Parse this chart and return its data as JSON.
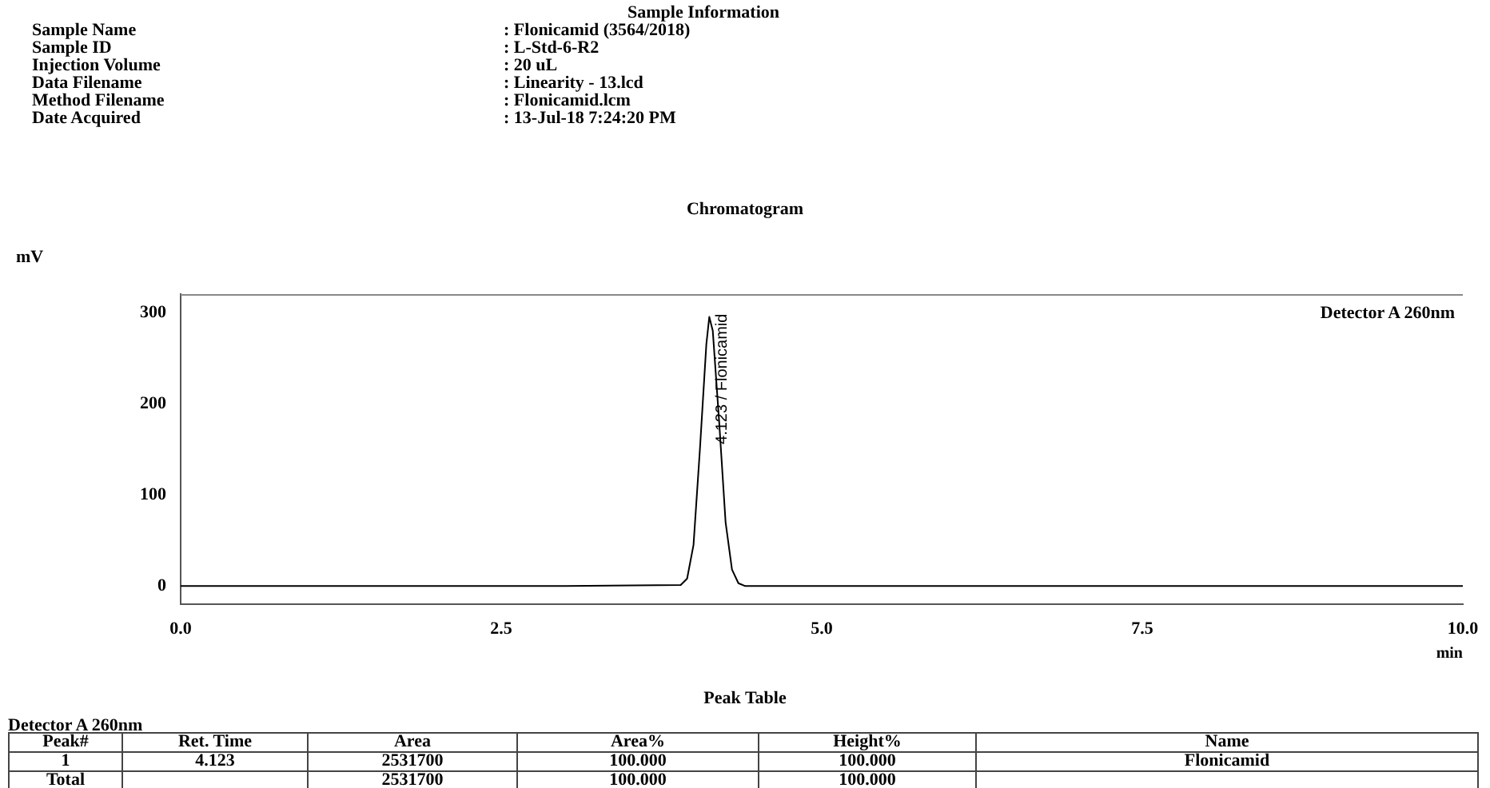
{
  "chart_data": {
    "type": "line",
    "title": "Chromatogram",
    "xlabel": "min",
    "x": [
      0,
      1,
      2,
      3,
      3.9,
      3.95,
      4.0,
      4.05,
      4.1,
      4.123,
      4.15,
      4.2,
      4.25,
      4.3,
      4.35,
      4.4,
      5,
      6,
      7,
      8,
      9,
      10
    ],
    "values": [
      0,
      0,
      0,
      0,
      1,
      8,
      45,
      150,
      265,
      295,
      280,
      180,
      70,
      18,
      3,
      0,
      0,
      0,
      0,
      0,
      0,
      0
    ],
    "color": "#000000",
    "marker": "none",
    "xlim": [
      0,
      10
    ],
    "ylim": [
      -20,
      320
    ],
    "xticks": [
      {
        "value": 0,
        "label": "0.0"
      },
      {
        "value": 2.5,
        "label": "2.5"
      },
      {
        "value": 5,
        "label": "5.0"
      },
      {
        "value": 7.5,
        "label": "7.5"
      },
      {
        "value": 10,
        "label": "10.0"
      }
    ],
    "yticks": [
      0,
      100,
      200,
      300
    ],
    "annotations": [
      {
        "text": "4.123 / Flonicamid",
        "x": 4.123,
        "y": 295
      },
      "Detector A 260nm",
      "Sample Information",
      "Sample Name",
      "Sample ID",
      "Injection Volume",
      "Data Filename",
      "Method Filename",
      "Date Acquired",
      ": Flonicamid (3564/2018)",
      ": L-Std-6-R2",
      ": 20 uL",
      ": Linearity - 13.lcd",
      ": Flonicamid.lcm",
      ": 13-Jul-18 7:24:20 PM",
      "Peak Table",
      "Detector A 260nm",
      "Peak#",
      "Ret. Time",
      "Area",
      "Area%",
      "Height%",
      "Name",
      "1",
      "4.123",
      "2531700",
      "100.000",
      "100.000",
      "Flonicamid",
      "Total",
      "2531700",
      "100.000",
      "100.000",
      "mV"
    ]
  }
}
